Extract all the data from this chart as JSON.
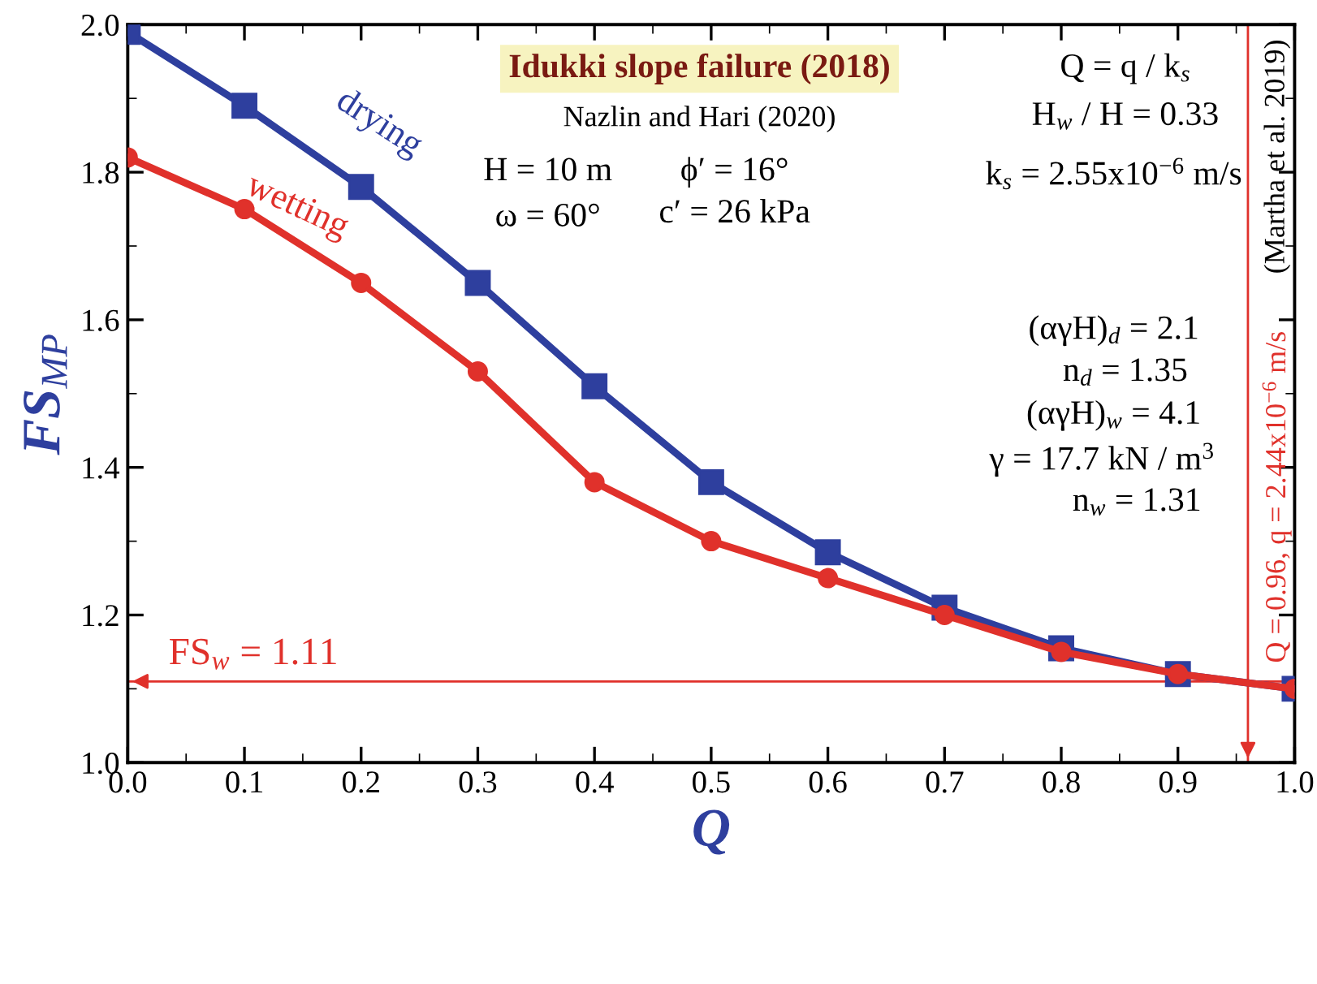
{
  "chart_data": {
    "type": "line",
    "title": "Idukki slope failure (2018)",
    "subtitle": "Nazlin and Hari (2020)",
    "xlabel": "Q",
    "ylabel": "FS$_{MP}$",
    "x": [
      0.0,
      0.1,
      0.2,
      0.3,
      0.4,
      0.5,
      0.6,
      0.7,
      0.8,
      0.9,
      1.0
    ],
    "series": [
      {
        "name": "drying",
        "color": "#2e3f9e",
        "marker": "square",
        "values": [
          1.99,
          1.89,
          1.78,
          1.65,
          1.51,
          1.38,
          1.285,
          1.21,
          1.155,
          1.12,
          1.1
        ]
      },
      {
        "name": "wetting",
        "color": "#e0312b",
        "marker": "circle",
        "values": [
          1.82,
          1.75,
          1.65,
          1.53,
          1.38,
          1.3,
          1.25,
          1.2,
          1.15,
          1.12,
          1.1
        ]
      }
    ],
    "xlim": [
      0,
      1
    ],
    "ylim": [
      1.0,
      2.0
    ],
    "xticks": [
      {
        "value": 0,
        "label": "0.0"
      },
      0.1,
      0.2,
      0.3,
      0.4,
      0.5,
      0.6,
      0.7,
      0.8,
      0.9,
      {
        "value": 1,
        "label": "1.0"
      }
    ],
    "yticks": [
      {
        "value": 1,
        "label": "1.0"
      },
      1.2,
      1.4,
      1.6,
      1.8,
      {
        "value": 2,
        "label": "2.0"
      }
    ],
    "ref_lines": [
      {
        "axis": "y",
        "value": 1.11,
        "label": "FS$_{w}$ = 1.11",
        "color": "#e0312b"
      },
      {
        "axis": "x",
        "value": 0.96,
        "label": "Q = 0.96, q = 2.44x10$^{−6}$ m/s",
        "color": "#e0312b"
      }
    ],
    "annotations": [
      "Q = q / k$_{s}$",
      "H$_{w}$ / H = 0.33",
      "k$_{s}$ = 2.55x10$^{−6}$ m/s",
      "H = 10 m",
      "ϕ′ = 16°",
      "ω = 60°",
      "c′ = 26 kPa",
      "(αγH)$_{d}$ = 2.1",
      "n$_{d}$ = 1.35",
      "(αγH)$_{w}$ = 4.1",
      "γ = 17.7 kN / m$^{3}$",
      "n$_{w}$ = 1.31",
      "(Martha et al. 2019)"
    ],
    "grid": false,
    "legend": false,
    "line_style": "solid"
  }
}
